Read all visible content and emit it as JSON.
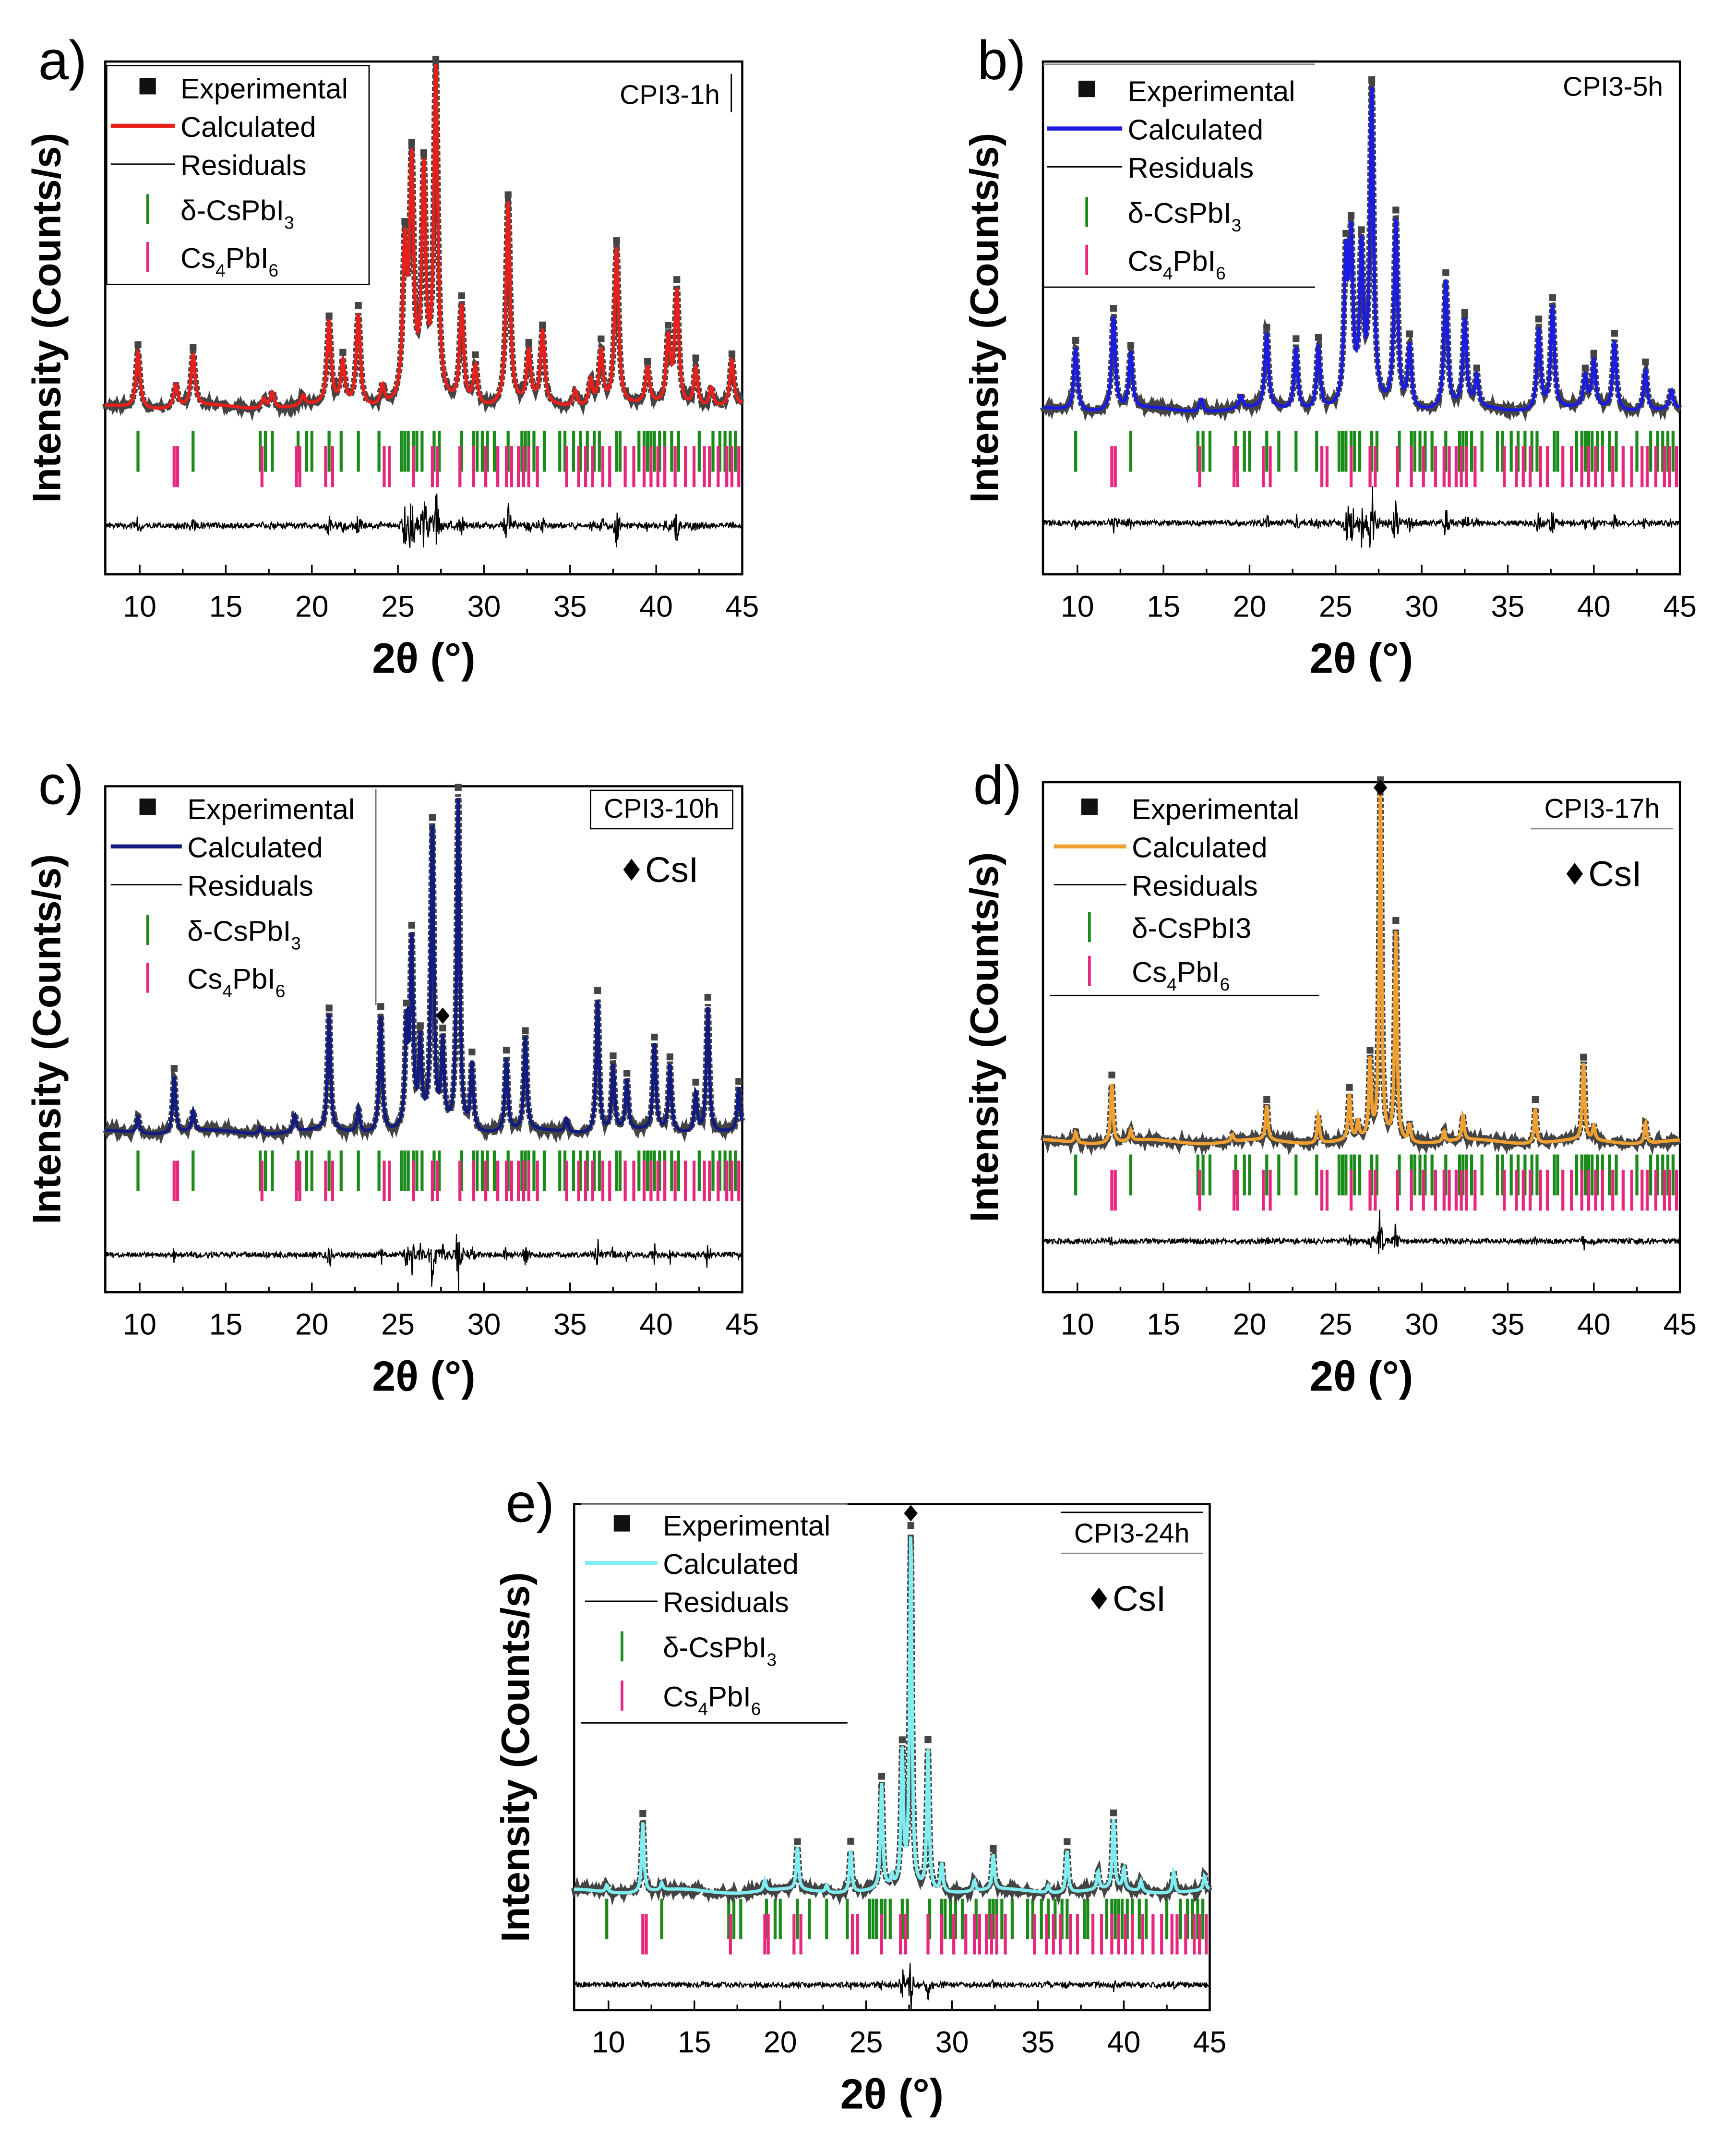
{
  "chart_data": [
    {
      "id": "a",
      "panel_label": "a)",
      "type": "line",
      "sample": "CPI3-1h",
      "xlabel": "2θ (°)",
      "ylabel": "Intensity (Counts/s)",
      "xlim": [
        8,
        45
      ],
      "xticks": [
        "10",
        "15",
        "20",
        "25",
        "30",
        "35",
        "40",
        "45"
      ],
      "calc_color": "#e8201c",
      "fwhm": 0.28,
      "csi_marker": false,
      "legend": [
        [
          "Experimental"
        ],
        [
          "Calculated"
        ],
        [
          "Residuals"
        ],
        [
          "δ-CsPbI",
          "3"
        ],
        [
          "Cs",
          "4",
          "PbI",
          "6"
        ]
      ],
      "peaks": [
        [
          9.9,
          0.17
        ],
        [
          12.1,
          0.07
        ],
        [
          13.1,
          0.16
        ],
        [
          17.2,
          0.03
        ],
        [
          17.7,
          0.05
        ],
        [
          19.5,
          0.03
        ],
        [
          21.0,
          0.25
        ],
        [
          21.8,
          0.13
        ],
        [
          22.7,
          0.28
        ],
        [
          24.1,
          0.06
        ],
        [
          25.4,
          0.45
        ],
        [
          25.8,
          0.7
        ],
        [
          26.5,
          0.68
        ],
        [
          27.2,
          1.0
        ],
        [
          28.7,
          0.3
        ],
        [
          29.5,
          0.12
        ],
        [
          31.4,
          0.62
        ],
        [
          32.6,
          0.16
        ],
        [
          33.4,
          0.22
        ],
        [
          35.3,
          0.05
        ],
        [
          36.2,
          0.08
        ],
        [
          36.8,
          0.17
        ],
        [
          37.7,
          0.48
        ],
        [
          39.5,
          0.11
        ],
        [
          40.7,
          0.2
        ],
        [
          41.2,
          0.35
        ],
        [
          42.3,
          0.12
        ],
        [
          43.2,
          0.06
        ],
        [
          44.4,
          0.14
        ]
      ]
    },
    {
      "id": "b",
      "panel_label": "b)",
      "type": "line",
      "sample": "CPI3-5h",
      "xlabel": "2θ (°)",
      "ylabel": "Intensity (Counts/s)",
      "xlim": [
        8,
        45
      ],
      "xticks": [
        "10",
        "15",
        "20",
        "25",
        "30",
        "35",
        "40",
        "45"
      ],
      "calc_color": "#1c1ce0",
      "fwhm": 0.25,
      "csi_marker": false,
      "legend": [
        [
          "Experimental"
        ],
        [
          "Calculated"
        ],
        [
          "Residuals"
        ],
        [
          "δ-CsPbI",
          "3"
        ],
        [
          "Cs",
          "4",
          "PbI",
          "6"
        ]
      ],
      "peaks": [
        [
          9.9,
          0.2
        ],
        [
          12.1,
          0.3
        ],
        [
          13.1,
          0.18
        ],
        [
          17.2,
          0.04
        ],
        [
          19.5,
          0.04
        ],
        [
          21.0,
          0.24
        ],
        [
          22.7,
          0.2
        ],
        [
          24.0,
          0.2
        ],
        [
          25.6,
          0.45
        ],
        [
          25.9,
          0.5
        ],
        [
          26.5,
          0.48
        ],
        [
          27.1,
          1.0
        ],
        [
          28.5,
          0.6
        ],
        [
          29.3,
          0.2
        ],
        [
          31.4,
          0.41
        ],
        [
          32.5,
          0.28
        ],
        [
          33.2,
          0.1
        ],
        [
          36.8,
          0.26
        ],
        [
          37.6,
          0.33
        ],
        [
          39.5,
          0.1
        ],
        [
          40.0,
          0.15
        ],
        [
          41.2,
          0.22
        ],
        [
          43.0,
          0.13
        ],
        [
          44.5,
          0.06
        ]
      ]
    },
    {
      "id": "c",
      "panel_label": "c)",
      "type": "line",
      "sample": "CPI3-10h",
      "csi_label": "CsI",
      "xlabel": "2θ (°)",
      "ylabel": "Intensity (Counts/s)",
      "xlim": [
        8,
        45
      ],
      "xticks": [
        "10",
        "15",
        "20",
        "25",
        "30",
        "35",
        "40",
        "45"
      ],
      "calc_color": "#121c80",
      "fwhm": 0.2,
      "csi_marker": true,
      "csi_peak": 27.6,
      "legend": [
        [
          "Experimental"
        ],
        [
          "Calculated"
        ],
        [
          "Residuals"
        ],
        [
          "δ-CsPbI",
          "3"
        ],
        [
          "Cs",
          "4",
          "PbI",
          "6"
        ]
      ],
      "peaks": [
        [
          9.9,
          0.05
        ],
        [
          12.0,
          0.17
        ],
        [
          13.1,
          0.06
        ],
        [
          17.0,
          0.02
        ],
        [
          19.0,
          0.05
        ],
        [
          21.0,
          0.35
        ],
        [
          22.7,
          0.07
        ],
        [
          24.0,
          0.35
        ],
        [
          25.5,
          0.3
        ],
        [
          25.8,
          0.55
        ],
        [
          26.3,
          0.25
        ],
        [
          27.0,
          0.9
        ],
        [
          27.6,
          0.25
        ],
        [
          28.5,
          1.0
        ],
        [
          29.3,
          0.2
        ],
        [
          31.3,
          0.22
        ],
        [
          32.4,
          0.28
        ],
        [
          34.8,
          0.04
        ],
        [
          36.6,
          0.4
        ],
        [
          37.5,
          0.2
        ],
        [
          38.3,
          0.15
        ],
        [
          39.9,
          0.26
        ],
        [
          40.8,
          0.2
        ],
        [
          42.3,
          0.12
        ],
        [
          43.0,
          0.38
        ],
        [
          44.8,
          0.13
        ]
      ]
    },
    {
      "id": "d",
      "panel_label": "d)",
      "type": "line",
      "sample": "CPI3-17h",
      "csi_label": "CsI",
      "xlabel": "2θ (°)",
      "ylabel": "Intensity (Counts/s)",
      "xlim": [
        8,
        45
      ],
      "xticks": [
        "10",
        "15",
        "20",
        "25",
        "30",
        "35",
        "40",
        "45"
      ],
      "calc_color": "#f0a030",
      "fwhm": 0.16,
      "csi_marker": true,
      "csi_peak": 27.6,
      "legend": [
        [
          "Experimental"
        ],
        [
          "Calculated"
        ],
        [
          "Residuals"
        ],
        [
          "δ-CsPbI3"
        ],
        [
          "Cs",
          "4",
          "PbI",
          "6"
        ]
      ],
      "peaks": [
        [
          9.9,
          0.03
        ],
        [
          12.0,
          0.17
        ],
        [
          13.1,
          0.03
        ],
        [
          19.0,
          0.02
        ],
        [
          21.0,
          0.1
        ],
        [
          24.0,
          0.08
        ],
        [
          25.8,
          0.13
        ],
        [
          26.3,
          0.05
        ],
        [
          27.0,
          0.22
        ],
        [
          27.6,
          1.0
        ],
        [
          28.5,
          0.6
        ],
        [
          29.3,
          0.05
        ],
        [
          31.3,
          0.03
        ],
        [
          32.4,
          0.07
        ],
        [
          36.6,
          0.1
        ],
        [
          39.4,
          0.22
        ],
        [
          40.0,
          0.04
        ],
        [
          43.0,
          0.06
        ]
      ]
    },
    {
      "id": "e",
      "panel_label": "e)",
      "type": "line",
      "sample": "CPI3-24h",
      "csi_label": "CsI",
      "xlabel": "2θ (°)",
      "ylabel": "Intensity (Counts/s)",
      "xlim": [
        8,
        45
      ],
      "xticks": [
        "10",
        "15",
        "20",
        "25",
        "30",
        "35",
        "40",
        "45"
      ],
      "calc_color": "#80eef0",
      "fwhm": 0.16,
      "csi_marker": true,
      "csi_peak": 27.6,
      "legend": [
        [
          "Experimental"
        ],
        [
          "Calculated"
        ],
        [
          "Residuals"
        ],
        [
          "δ-CsPbI",
          "3"
        ],
        [
          "Cs",
          "4",
          "PbI",
          "6"
        ]
      ],
      "peaks": [
        [
          9.9,
          0.02
        ],
        [
          12.0,
          0.2
        ],
        [
          13.1,
          0.02
        ],
        [
          19.1,
          0.03
        ],
        [
          21.0,
          0.12
        ],
        [
          22.7,
          0.02
        ],
        [
          24.1,
          0.12
        ],
        [
          25.9,
          0.3
        ],
        [
          26.5,
          0.03
        ],
        [
          27.1,
          0.38
        ],
        [
          27.6,
          1.0
        ],
        [
          28.6,
          0.4
        ],
        [
          29.4,
          0.08
        ],
        [
          31.3,
          0.03
        ],
        [
          32.4,
          0.1
        ],
        [
          35.6,
          0.02
        ],
        [
          36.7,
          0.12
        ],
        [
          38.5,
          0.05
        ],
        [
          39.4,
          0.2
        ],
        [
          40.0,
          0.06
        ],
        [
          41.0,
          0.03
        ],
        [
          42.9,
          0.06
        ],
        [
          44.7,
          0.04
        ]
      ]
    }
  ],
  "phase_ticks": {
    "delta_CsPbI3": {
      "color": "#1a8a1a",
      "positions": [
        9.9,
        13.1,
        17.0,
        17.3,
        17.7,
        19.2,
        19.7,
        20.0,
        21.0,
        21.7,
        22.7,
        23.9,
        25.2,
        25.4,
        25.6,
        25.9,
        26.1,
        26.4,
        27.1,
        27.4,
        28.7,
        29.4,
        29.6,
        29.9,
        30.2,
        30.6,
        31.4,
        32.2,
        32.4,
        32.6,
        32.9,
        33.5,
        34.4,
        34.7,
        35.2,
        35.6,
        36.0,
        36.4,
        36.7,
        37.7,
        37.9,
        39.0,
        39.3,
        39.5,
        39.7,
        39.9,
        40.2,
        40.5,
        40.9,
        41.3,
        42.5,
        43.3,
        43.7,
        44.0,
        44.3,
        44.6
      ]
    },
    "Cs4PbI6": {
      "color": "#e8267e",
      "positions": [
        12.0,
        12.2,
        17.1,
        19.1,
        19.3,
        20.8,
        21.2,
        24.2,
        24.5,
        25.9,
        27.0,
        27.3,
        28.6,
        29.4,
        30.1,
        30.8,
        31.3,
        31.6,
        32.0,
        32.3,
        32.6,
        33.1,
        34.8,
        35.5,
        35.9,
        36.3,
        36.9,
        37.3,
        38.2,
        38.7,
        39.3,
        39.7,
        40.1,
        40.5,
        41.1,
        41.7,
        42.2,
        42.8,
        43.1,
        43.6,
        44.1,
        44.4,
        44.8
      ]
    }
  },
  "experimental_color": "#444444"
}
